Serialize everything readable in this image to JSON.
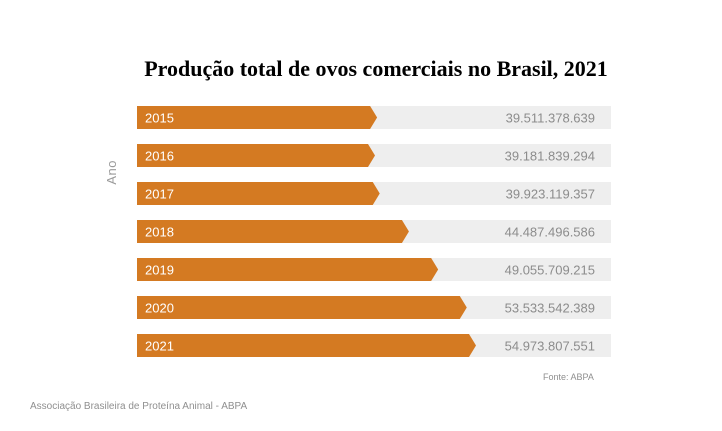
{
  "chart_data": {
    "type": "bar",
    "orientation": "horizontal",
    "title": "Produção total de ovos comerciais no Brasil, 2021",
    "ylabel": "Ano",
    "xlabel": "",
    "categories": [
      "2015",
      "2016",
      "2017",
      "2018",
      "2019",
      "2020",
      "2021"
    ],
    "values": [
      39511378639,
      39181839294,
      39923119357,
      44487496586,
      49055709215,
      53533542389,
      54973807551
    ],
    "value_labels": [
      "39.511.378.639",
      "39.181.839.294",
      "39.923.119.357",
      "44.487.496.586",
      "49.055.709.215",
      "53.533.542.389",
      "54.973.807.551"
    ],
    "source": "Fonte: ABPA",
    "colors": {
      "bar": "#d47a22",
      "track": "#eeeeee",
      "label": "#8c8c8c",
      "category": "#ffffff"
    }
  },
  "footer": "Associação Brasileira de Proteína Animal - ABPA"
}
